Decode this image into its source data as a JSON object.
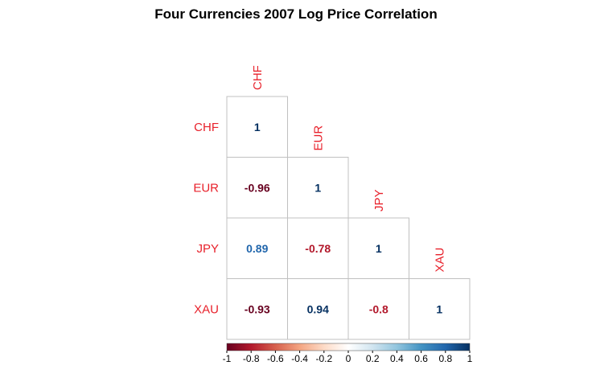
{
  "chart_data": {
    "type": "heatmap",
    "title": "Four Currencies 2007 Log Price Correlation",
    "labels": [
      "CHF",
      "EUR",
      "JPY",
      "XAU"
    ],
    "matrix": [
      [
        1,
        null,
        null,
        null
      ],
      [
        -0.96,
        1,
        null,
        null
      ],
      [
        0.89,
        -0.78,
        1,
        null
      ],
      [
        -0.93,
        0.94,
        -0.8,
        1
      ]
    ],
    "display_values": [
      [
        "1",
        "",
        "",
        ""
      ],
      [
        "-0.96",
        "1",
        "",
        ""
      ],
      [
        "0.89",
        "-0.78",
        "1",
        ""
      ],
      [
        "-0.93",
        "0.94",
        "-0.8",
        "1"
      ]
    ],
    "colorbar": {
      "range": [
        -1,
        1
      ],
      "ticks": [
        "-1",
        "-0.8",
        "-0.6",
        "-0.4",
        "-0.2",
        "0",
        "0.2",
        "0.4",
        "0.6",
        "0.8",
        "1"
      ]
    },
    "colors": {
      "label": "#e8212b",
      "strong_negative": "#67001f",
      "negative": "#b2182b",
      "positive": "#2166ac",
      "strong_positive": "#053061",
      "grid": "#c0c0c0"
    }
  }
}
